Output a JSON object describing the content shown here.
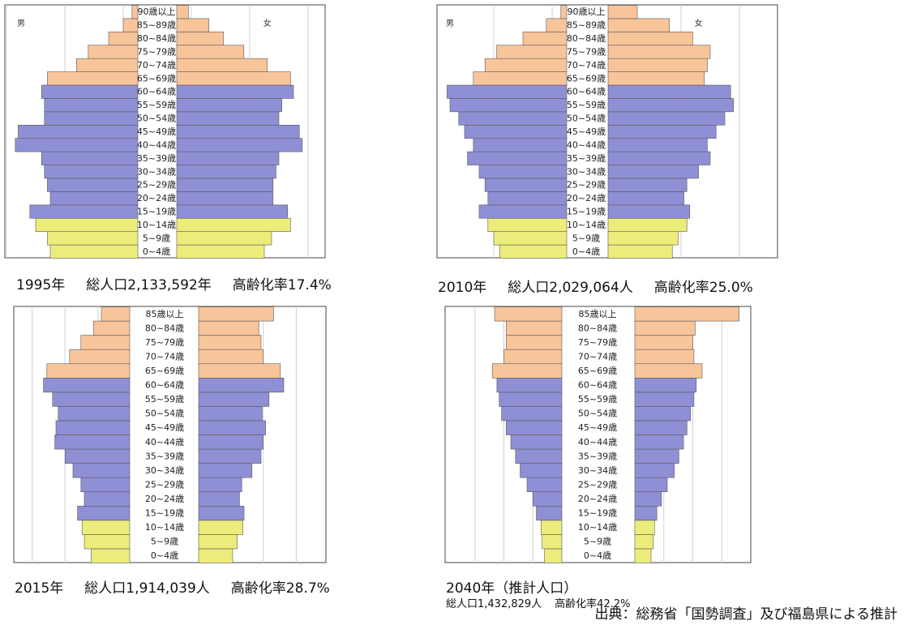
{
  "colors": {
    "elderly": "#f8c49a",
    "working": "#8e8fd4",
    "young": "#ecec7a",
    "frame": "#444444",
    "grid": "#d0d0d0",
    "bar_edge": "#5a5a5a"
  },
  "charts": [
    {
      "caption": {
        "year": "1995年",
        "total": "総人口2,133,592年",
        "aging": "高齢化率17.4%"
      },
      "male_label": "男",
      "female_label": "女"
    },
    {
      "caption": {
        "year": "2010年",
        "total": "総人口2,029,064人",
        "aging": "高齢化率25.0%"
      },
      "male_label": "男",
      "female_label": "女"
    },
    {
      "caption": {
        "year": "2015年",
        "total": "総人口1,914,039人",
        "aging": "高齢化率28.7%"
      }
    },
    {
      "caption": {
        "year": "2040年（推計人口）",
        "total": "総人口1,432,829人",
        "aging": "高齢化率42.2%"
      }
    }
  ],
  "source": "出典：総務省「国勢調査」及び福島県による推計",
  "chart_data": [
    {
      "type": "bar",
      "categories": [
        "0~4歳",
        "5~9歳",
        "10~14歳",
        "15~19歳",
        "20~24歳",
        "25~29歳",
        "30~34歳",
        "35~39歳",
        "40~44歳",
        "45~49歳",
        "50~54歳",
        "55~59歳",
        "60~64歳",
        "65~69歳",
        "70~74歳",
        "75~79歳",
        "80~84歳",
        "85~89歳",
        "90歳以上"
      ],
      "series": [
        {
          "name": "男",
          "values": [
            0.6,
            0.62,
            0.7,
            0.74,
            0.6,
            0.62,
            0.64,
            0.66,
            0.84,
            0.82,
            0.64,
            0.64,
            0.66,
            0.62,
            0.42,
            0.34,
            0.2,
            0.1,
            0.04
          ]
        },
        {
          "name": "女",
          "values": [
            0.6,
            0.65,
            0.78,
            0.76,
            0.66,
            0.66,
            0.68,
            0.7,
            0.86,
            0.84,
            0.7,
            0.72,
            0.8,
            0.78,
            0.62,
            0.46,
            0.32,
            0.22,
            0.08
          ]
        }
      ]
    },
    {
      "type": "bar",
      "categories": [
        "0~4歳",
        "5~9歳",
        "10~14歳",
        "15~19歳",
        "20~24歳",
        "25~29歳",
        "30~34歳",
        "35~39歳",
        "40~44歳",
        "45~49歳",
        "50~54歳",
        "55~59歳",
        "60~64歳",
        "65~69歳",
        "70~74歳",
        "75~79歳",
        "80~84歳",
        "85~89歳",
        "90歳以上"
      ],
      "series": [
        {
          "name": "男",
          "values": [
            0.46,
            0.5,
            0.54,
            0.6,
            0.54,
            0.56,
            0.6,
            0.68,
            0.64,
            0.7,
            0.74,
            0.8,
            0.82,
            0.64,
            0.56,
            0.48,
            0.3,
            0.14,
            0.04
          ]
        },
        {
          "name": "女",
          "values": [
            0.44,
            0.48,
            0.54,
            0.56,
            0.52,
            0.54,
            0.62,
            0.7,
            0.68,
            0.74,
            0.8,
            0.86,
            0.84,
            0.66,
            0.68,
            0.7,
            0.58,
            0.42,
            0.2
          ]
        }
      ]
    },
    {
      "type": "bar",
      "categories": [
        "0~4歳",
        "5~9歳",
        "10~14歳",
        "15~19歳",
        "20~24歳",
        "25~29歳",
        "30~34歳",
        "35~39歳",
        "40~44歳",
        "45~49歳",
        "50~54歳",
        "55~59歳",
        "60~64歳",
        "65~69歳",
        "70~74歳",
        "75~79歳",
        "80~84歳",
        "85歳以上"
      ],
      "series": [
        {
          "name": "男",
          "values": [
            0.34,
            0.4,
            0.42,
            0.46,
            0.4,
            0.43,
            0.5,
            0.57,
            0.66,
            0.65,
            0.63,
            0.68,
            0.76,
            0.73,
            0.53,
            0.43,
            0.32,
            0.25
          ]
        },
        {
          "name": "女",
          "values": [
            0.3,
            0.34,
            0.39,
            0.4,
            0.36,
            0.38,
            0.47,
            0.55,
            0.57,
            0.59,
            0.56,
            0.62,
            0.75,
            0.72,
            0.57,
            0.55,
            0.53,
            0.66
          ]
        }
      ]
    },
    {
      "type": "bar",
      "categories": [
        "0~4歳",
        "5~9歳",
        "10~14歳",
        "15~19歳",
        "20~24歳",
        "25~29歳",
        "30~34歳",
        "35~39歳",
        "40~44歳",
        "45~49歳",
        "50~54歳",
        "55~59歳",
        "60~64歳",
        "65~69歳",
        "70~74歳",
        "75~79歳",
        "80~84歳",
        "85歳以上"
      ],
      "series": [
        {
          "name": "男",
          "values": [
            0.15,
            0.17,
            0.18,
            0.22,
            0.25,
            0.3,
            0.36,
            0.4,
            0.44,
            0.48,
            0.52,
            0.54,
            0.56,
            0.6,
            0.5,
            0.48,
            0.48,
            0.58
          ]
        },
        {
          "name": "女",
          "values": [
            0.14,
            0.16,
            0.17,
            0.19,
            0.23,
            0.28,
            0.34,
            0.38,
            0.42,
            0.45,
            0.48,
            0.51,
            0.53,
            0.58,
            0.51,
            0.5,
            0.52,
            0.9
          ]
        }
      ]
    }
  ]
}
